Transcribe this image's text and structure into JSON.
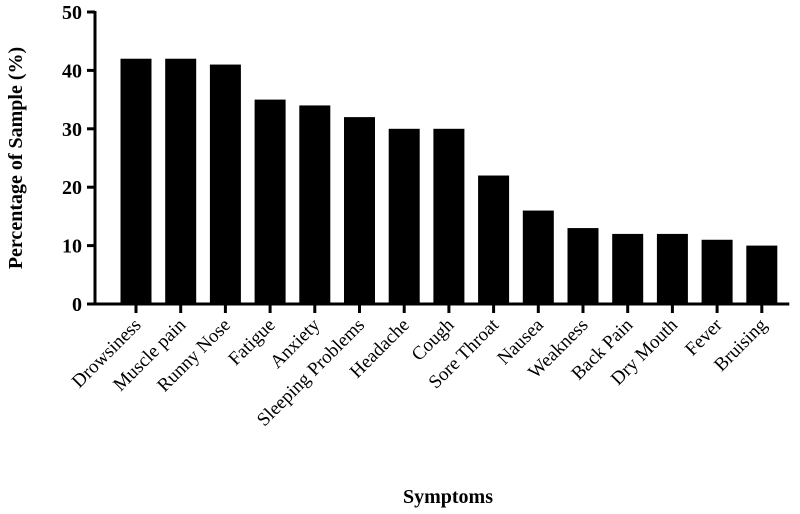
{
  "chart_data": {
    "type": "bar",
    "categories": [
      "Drowsiness",
      "Muscle pain",
      "Runny Nose",
      "Fatigue",
      "Anxiety",
      "Sleeping Problems",
      "Headache",
      "Cough",
      "Sore Throat",
      "Nausea",
      "Weakness",
      "Back Pain",
      "Dry Mouth",
      "Fever",
      "Bruising"
    ],
    "values": [
      42,
      42,
      41,
      35,
      34,
      32,
      30,
      30,
      22,
      16,
      13,
      12,
      12,
      11,
      10
    ],
    "xlabel": "Symptoms",
    "ylabel": "Percentage of Sample (%)",
    "ylim": [
      0,
      50
    ],
    "yticks": [
      "0",
      "10",
      "20",
      "30",
      "40",
      "50"
    ],
    "bar_color": "#000000",
    "grid": false
  }
}
